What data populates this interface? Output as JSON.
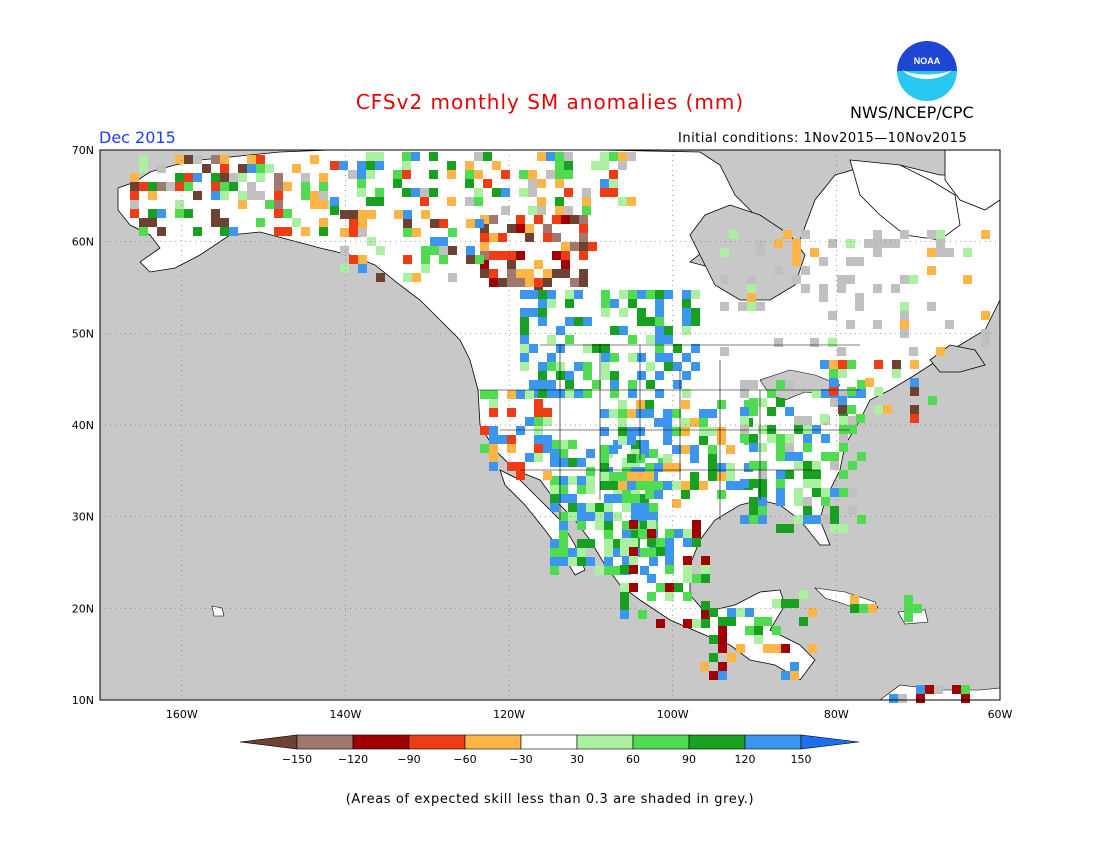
{
  "header": {
    "title": "CFSv2 monthly SM anomalies (mm)",
    "period": "Dec 2015",
    "agency": "NWS/NCEP/CPC",
    "initial_conditions": "Initial conditions: 1Nov2015—10Nov2015",
    "logo_text": "NOAA"
  },
  "map": {
    "lat_range": [
      10,
      70
    ],
    "lon_range": [
      -170,
      -60
    ],
    "lat_labels": [
      "70N",
      "60N",
      "50N",
      "40N",
      "30N",
      "20N",
      "10N"
    ],
    "lon_labels": [
      "160W",
      "140W",
      "120W",
      "100W",
      "80W",
      "60W"
    ],
    "ocean_color": "#c8c8c8",
    "grey_color": "#c0c0c0"
  },
  "colorbar": {
    "labels": [
      "−150",
      "−120",
      "−90",
      "−60",
      "−30",
      "30",
      "60",
      "90",
      "120",
      "150"
    ],
    "colors": [
      "#6e4232",
      "#a0786e",
      "#a00000",
      "#f03c14",
      "#ffb446",
      "#ffffff",
      "#aaf0a0",
      "#50dc50",
      "#18a020",
      "#3c96f0",
      "#1e6ef0"
    ]
  },
  "footnote": "(Areas of expected skill less than 0.3 are shaded in grey.)"
}
